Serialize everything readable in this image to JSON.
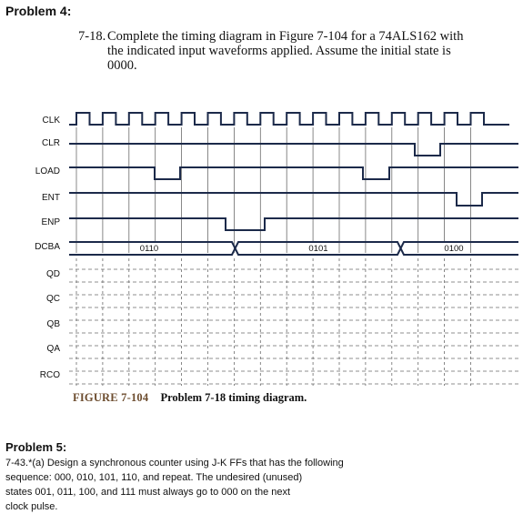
{
  "problem4": {
    "heading": "Problem 4:",
    "number": "7-18.",
    "text_lines": [
      "Complete the timing diagram in Figure 7-104 for a 74ALS162 with",
      "the indicated input waveforms applied. Assume the initial state is",
      "0000."
    ]
  },
  "diagram": {
    "signal_labels": [
      "CLK",
      "CLR",
      "LOAD",
      "ENT",
      "ENP",
      "DCBA",
      "QD",
      "QC",
      "QB",
      "QA",
      "RCO"
    ],
    "data_values": [
      "0110",
      "0101",
      "0100"
    ],
    "clock_pulses": 16,
    "colors": {
      "trace": "#1c2a4a",
      "grid": "#6b6b6b"
    }
  },
  "figure": {
    "label": "FIGURE 7-104",
    "title": "Problem 7-18 timing diagram."
  },
  "problem5": {
    "heading": "Problem 5:",
    "lines": [
      "7-43.*(a) Design a synchronous counter using J-K FFs that has the following",
      "sequence: 000, 010, 101, 110, and repeat. The undesired (unused)",
      "states 001, 011, 100, and 111 must always go to 000 on the next",
      "clock pulse."
    ]
  }
}
